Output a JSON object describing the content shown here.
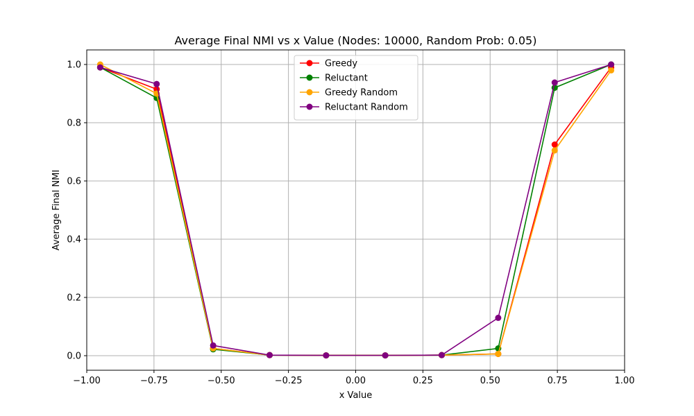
{
  "chart_data": {
    "type": "line",
    "title": "Average Final NMI vs x Value (Nodes: 10000, Random Prob: 0.05)",
    "xlabel": "x Value",
    "ylabel": "Average Final NMI",
    "xlim": [
      -1.0,
      1.0
    ],
    "ylim": [
      -0.05,
      1.05
    ],
    "xticks": [
      -1.0,
      -0.75,
      -0.5,
      -0.25,
      0.0,
      0.25,
      0.5,
      0.75,
      1.0
    ],
    "xtick_labels": [
      "−1.00",
      "−0.75",
      "−0.50",
      "−0.25",
      "0.00",
      "0.25",
      "0.50",
      "0.75",
      "1.00"
    ],
    "yticks": [
      0.0,
      0.2,
      0.4,
      0.6,
      0.8,
      1.0
    ],
    "ytick_labels": [
      "0.0",
      "0.2",
      "0.4",
      "0.6",
      "0.8",
      "1.0"
    ],
    "grid": true,
    "legend_position": "top-center",
    "x": [
      -0.95,
      -0.74,
      -0.53,
      -0.32,
      -0.11,
      0.11,
      0.32,
      0.53,
      0.74,
      0.95
    ],
    "series": [
      {
        "name": "Greedy",
        "color": "#ff0000",
        "values": [
          0.99,
          0.915,
          0.025,
          0.002,
          0.001,
          0.001,
          0.002,
          0.006,
          0.725,
          0.99
        ]
      },
      {
        "name": "Reluctant",
        "color": "#008000",
        "values": [
          0.99,
          0.885,
          0.022,
          0.002,
          0.001,
          0.001,
          0.002,
          0.025,
          0.92,
          1.0
        ]
      },
      {
        "name": "Greedy Random",
        "color": "#ffa500",
        "values": [
          1.0,
          0.9,
          0.025,
          0.002,
          0.001,
          0.001,
          0.002,
          0.006,
          0.705,
          0.98
        ]
      },
      {
        "name": "Reluctant Random",
        "color": "#800080",
        "values": [
          0.99,
          0.933,
          0.035,
          0.002,
          0.001,
          0.001,
          0.002,
          0.13,
          0.938,
          1.0
        ]
      }
    ]
  }
}
